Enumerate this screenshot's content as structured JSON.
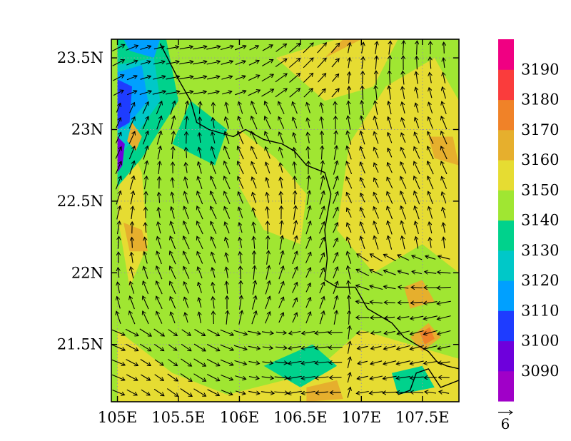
{
  "chart_data": {
    "type": "heatmap",
    "title": "",
    "xlabel": "",
    "ylabel": "",
    "xlim": [
      104.95,
      107.8
    ],
    "ylim": [
      21.1,
      23.63
    ],
    "x_ticks": [
      {
        "value": 105.0,
        "label": "105E"
      },
      {
        "value": 105.5,
        "label": "105.5E"
      },
      {
        "value": 106.0,
        "label": "106E"
      },
      {
        "value": 106.5,
        "label": "106.5E"
      },
      {
        "value": 107.0,
        "label": "107E"
      },
      {
        "value": 107.5,
        "label": "107.5E"
      }
    ],
    "y_ticks": [
      {
        "value": 21.5,
        "label": "21.5N"
      },
      {
        "value": 22.0,
        "label": "22N"
      },
      {
        "value": 22.5,
        "label": "22.5N"
      },
      {
        "value": 23.0,
        "label": "23N"
      },
      {
        "value": 23.5,
        "label": "23.5N"
      }
    ],
    "grid": "dotted",
    "colorbar": {
      "labels": [
        "3090",
        "3100",
        "3110",
        "3120",
        "3130",
        "3140",
        "3150",
        "3160",
        "3170",
        "3180",
        "3190"
      ],
      "colors": [
        "#a000c8",
        "#6e00dc",
        "#1e3cff",
        "#00a0ff",
        "#00c8c8",
        "#00d28c",
        "#a0e632",
        "#e6dc32",
        "#e6af2d",
        "#f08228",
        "#fa3c3c",
        "#f00082"
      ]
    },
    "background_level": 3140,
    "fill_regions": [
      {
        "value": 3150,
        "points": [
          [
            105.45,
            21.3
          ],
          [
            105.9,
            21.15
          ],
          [
            106.6,
            21.3
          ],
          [
            107.0,
            21.6
          ],
          [
            107.4,
            21.5
          ],
          [
            107.8,
            21.4
          ],
          [
            107.8,
            21.1
          ],
          [
            105.0,
            21.1
          ],
          [
            105.0,
            21.6
          ]
        ]
      },
      {
        "value": 3150,
        "points": [
          [
            106.8,
            22.3
          ],
          [
            106.9,
            22.9
          ],
          [
            107.2,
            23.3
          ],
          [
            107.6,
            23.5
          ],
          [
            107.8,
            23.2
          ],
          [
            107.8,
            22.0
          ],
          [
            107.5,
            22.2
          ],
          [
            107.1,
            22.0
          ]
        ]
      },
      {
        "value": 3150,
        "points": [
          [
            106.0,
            23.0
          ],
          [
            106.3,
            22.8
          ],
          [
            106.55,
            22.55
          ],
          [
            106.5,
            22.2
          ],
          [
            106.2,
            22.3
          ],
          [
            106.0,
            22.6
          ]
        ]
      },
      {
        "value": 3150,
        "points": [
          [
            106.3,
            23.5
          ],
          [
            106.8,
            23.63
          ],
          [
            107.3,
            23.63
          ],
          [
            107.1,
            23.3
          ],
          [
            106.7,
            23.2
          ]
        ]
      },
      {
        "value": 3150,
        "points": [
          [
            105.05,
            23.0
          ],
          [
            105.2,
            22.7
          ],
          [
            105.25,
            22.2
          ],
          [
            105.1,
            21.9
          ],
          [
            105.0,
            22.4
          ]
        ]
      },
      {
        "value": 3130,
        "points": [
          [
            106.2,
            21.35
          ],
          [
            106.6,
            21.5
          ],
          [
            106.8,
            21.35
          ],
          [
            106.5,
            21.2
          ]
        ]
      },
      {
        "value": 3130,
        "points": [
          [
            107.25,
            21.3
          ],
          [
            107.5,
            21.35
          ],
          [
            107.6,
            21.2
          ],
          [
            107.3,
            21.15
          ]
        ]
      },
      {
        "value": 3130,
        "points": [
          [
            105.45,
            22.9
          ],
          [
            105.8,
            22.75
          ],
          [
            105.9,
            23.0
          ],
          [
            105.6,
            23.2
          ]
        ]
      },
      {
        "value": 3130,
        "points": [
          [
            105.0,
            23.63
          ],
          [
            105.4,
            23.63
          ],
          [
            105.5,
            23.2
          ],
          [
            105.2,
            22.8
          ],
          [
            105.0,
            22.6
          ]
        ]
      },
      {
        "value": 3120,
        "points": [
          [
            105.0,
            23.45
          ],
          [
            105.3,
            23.5
          ],
          [
            105.35,
            23.2
          ],
          [
            105.1,
            22.9
          ],
          [
            105.0,
            22.8
          ]
        ]
      },
      {
        "value": 3110,
        "points": [
          [
            105.0,
            23.4
          ],
          [
            105.2,
            23.45
          ],
          [
            105.25,
            23.2
          ],
          [
            105.05,
            23.0
          ]
        ]
      },
      {
        "value": 3100,
        "points": [
          [
            105.0,
            23.35
          ],
          [
            105.12,
            23.3
          ],
          [
            105.1,
            23.05
          ],
          [
            105.0,
            23.0
          ]
        ]
      },
      {
        "value": 3090,
        "points": [
          [
            105.0,
            22.95
          ],
          [
            105.06,
            22.9
          ],
          [
            105.04,
            22.75
          ],
          [
            105.0,
            22.7
          ]
        ]
      },
      {
        "value": 3110,
        "points": [
          [
            105.05,
            23.63
          ],
          [
            105.35,
            23.63
          ],
          [
            105.3,
            23.5
          ],
          [
            105.1,
            23.55
          ]
        ]
      },
      {
        "value": 3160,
        "points": [
          [
            105.12,
            23.05
          ],
          [
            105.2,
            22.95
          ],
          [
            105.15,
            22.85
          ],
          [
            105.08,
            22.92
          ]
        ]
      },
      {
        "value": 3160,
        "points": [
          [
            105.05,
            22.35
          ],
          [
            105.2,
            22.3
          ],
          [
            105.25,
            22.15
          ],
          [
            105.1,
            22.15
          ]
        ]
      },
      {
        "value": 3160,
        "points": [
          [
            106.55,
            21.2
          ],
          [
            106.8,
            21.25
          ],
          [
            106.85,
            21.12
          ],
          [
            106.55,
            21.1
          ]
        ]
      },
      {
        "value": 3160,
        "points": [
          [
            107.35,
            21.9
          ],
          [
            107.5,
            21.95
          ],
          [
            107.6,
            21.8
          ],
          [
            107.4,
            21.75
          ]
        ]
      },
      {
        "value": 3160,
        "points": [
          [
            107.4,
            21.55
          ],
          [
            107.55,
            21.65
          ],
          [
            107.65,
            21.55
          ],
          [
            107.5,
            21.45
          ]
        ]
      },
      {
        "value": 3160,
        "points": [
          [
            107.55,
            22.95
          ],
          [
            107.75,
            22.95
          ],
          [
            107.8,
            22.75
          ],
          [
            107.6,
            22.8
          ]
        ]
      },
      {
        "value": 3170,
        "points": [
          [
            107.48,
            21.58
          ],
          [
            107.56,
            21.62
          ],
          [
            107.6,
            21.54
          ],
          [
            107.52,
            21.5
          ]
        ]
      },
      {
        "value": 3160,
        "points": [
          [
            106.7,
            23.5
          ],
          [
            107.0,
            23.63
          ],
          [
            106.85,
            23.63
          ]
        ]
      }
    ],
    "border": [
      [
        105.35,
        23.6
      ],
      [
        105.5,
        23.35
      ],
      [
        105.6,
        23.2
      ],
      [
        105.65,
        23.05
      ],
      [
        105.75,
        23.0
      ],
      [
        105.95,
        22.95
      ],
      [
        106.05,
        23.0
      ],
      [
        106.2,
        22.93
      ],
      [
        106.35,
        22.9
      ],
      [
        106.45,
        22.85
      ],
      [
        106.55,
        22.75
      ],
      [
        106.7,
        22.7
      ],
      [
        106.75,
        22.55
      ],
      [
        106.7,
        22.3
      ],
      [
        106.72,
        22.1
      ],
      [
        106.7,
        21.95
      ],
      [
        106.8,
        21.9
      ],
      [
        106.95,
        21.9
      ],
      [
        107.05,
        21.75
      ],
      [
        107.25,
        21.65
      ],
      [
        107.35,
        21.55
      ],
      [
        107.45,
        21.5
      ],
      [
        107.55,
        21.45
      ],
      [
        107.62,
        21.38
      ],
      [
        107.7,
        21.35
      ],
      [
        107.8,
        21.33
      ]
    ],
    "coast": [
      [
        107.3,
        21.15
      ],
      [
        107.4,
        21.18
      ],
      [
        107.45,
        21.3
      ],
      [
        107.55,
        21.33
      ],
      [
        107.65,
        21.2
      ],
      [
        107.8,
        21.25
      ]
    ],
    "wind_reference": {
      "magnitude": 6,
      "label": "6"
    }
  }
}
